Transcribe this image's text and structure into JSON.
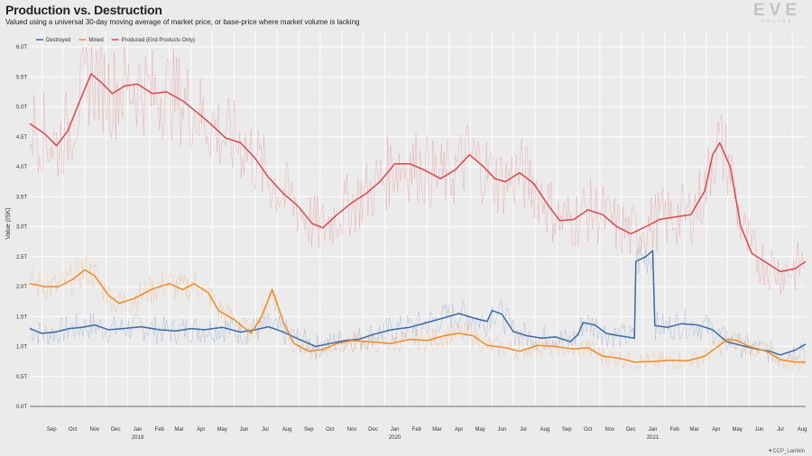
{
  "header": {
    "title": "Production vs. Destruction",
    "subtitle": "Valued using a universal 30-day moving average of market price, or base-price where market volume is lacking"
  },
  "logo": {
    "main": "EVE",
    "sub": "ONLINE"
  },
  "credit": "CCP_Larrikin",
  "colors": {
    "destroyed": "#3b6aa8",
    "mined": "#f08a24",
    "produced": "#e0454a",
    "grid": "#ffffff",
    "background": "#ebebeb"
  },
  "chart_data": {
    "type": "line",
    "ylabel": "Value (ISK)",
    "ylim": [
      0,
      6.0
    ],
    "yticks": [
      "0.0T",
      "0.5T",
      "1.0T",
      "1.5T",
      "2.0T",
      "2.5T",
      "3.0T",
      "3.5T",
      "4.0T",
      "4.5T",
      "5.0T",
      "5.5T",
      "6.0T"
    ],
    "xrange": [
      "2018-08-15",
      "2021-08-20"
    ],
    "x_months": [
      "2018-09",
      "2018-10",
      "2018-11",
      "2018-12",
      "2019-01",
      "2019-02",
      "2019-03",
      "2019-04",
      "2019-05",
      "2019-06",
      "2019-07",
      "2019-08",
      "2019-09",
      "2019-10",
      "2019-11",
      "2019-12",
      "2020-01",
      "2020-02",
      "2020-03",
      "2020-04",
      "2020-05",
      "2020-06",
      "2020-07",
      "2020-08",
      "2020-09",
      "2020-10",
      "2020-11",
      "2020-12",
      "2021-01",
      "2021-02",
      "2021-03",
      "2021-04",
      "2021-05",
      "2021-06",
      "2021-07",
      "2021-08"
    ],
    "xticks": [
      "Sep",
      "Oct",
      "Nov",
      "Dec",
      "Jan",
      "Feb",
      "Mar",
      "Apr",
      "May",
      "Jun",
      "Jul",
      "Aug",
      "Sep",
      "Oct",
      "Nov",
      "Dec",
      "Jan",
      "Feb",
      "Mar",
      "Apr",
      "May",
      "Jun",
      "Jul",
      "Aug",
      "Sep",
      "Oct",
      "Nov",
      "Dec",
      "Jan",
      "Feb",
      "Mar",
      "Apr",
      "May",
      "Jun",
      "Jul",
      "Aug"
    ],
    "year_labels": [
      {
        "month": "2019-01",
        "label": "2019"
      },
      {
        "month": "2020-01",
        "label": "2020"
      },
      {
        "month": "2021-01",
        "label": "2021"
      }
    ],
    "legend_position": "top-left",
    "grid": true,
    "series": [
      {
        "name": "Destroyed",
        "key": "destroyed",
        "points": [
          [
            "2018-08-15",
            1.3
          ],
          [
            "2018-09-01",
            1.22
          ],
          [
            "2018-09-20",
            1.24
          ],
          [
            "2018-10-10",
            1.3
          ],
          [
            "2018-10-28",
            1.32
          ],
          [
            "2018-11-15",
            1.36
          ],
          [
            "2018-12-05",
            1.28
          ],
          [
            "2018-12-25",
            1.3
          ],
          [
            "2019-01-20",
            1.33
          ],
          [
            "2019-02-15",
            1.28
          ],
          [
            "2019-03-10",
            1.26
          ],
          [
            "2019-04-01",
            1.3
          ],
          [
            "2019-04-20",
            1.28
          ],
          [
            "2019-05-15",
            1.32
          ],
          [
            "2019-06-10",
            1.24
          ],
          [
            "2019-07-01",
            1.28
          ],
          [
            "2019-07-20",
            1.33
          ],
          [
            "2019-08-10",
            1.24
          ],
          [
            "2019-09-01",
            1.12
          ],
          [
            "2019-09-25",
            1.0
          ],
          [
            "2019-10-15",
            1.05
          ],
          [
            "2019-11-05",
            1.1
          ],
          [
            "2019-11-25",
            1.12
          ],
          [
            "2019-12-15",
            1.2
          ],
          [
            "2020-01-10",
            1.28
          ],
          [
            "2020-02-05",
            1.32
          ],
          [
            "2020-03-01",
            1.4
          ],
          [
            "2020-03-25",
            1.48
          ],
          [
            "2020-04-15",
            1.55
          ],
          [
            "2020-05-10",
            1.46
          ],
          [
            "2020-05-25",
            1.42
          ],
          [
            "2020-06-01",
            1.6
          ],
          [
            "2020-06-15",
            1.54
          ],
          [
            "2020-07-01",
            1.25
          ],
          [
            "2020-07-20",
            1.18
          ],
          [
            "2020-08-10",
            1.14
          ],
          [
            "2020-08-30",
            1.16
          ],
          [
            "2020-09-20",
            1.08
          ],
          [
            "2020-10-01",
            1.2
          ],
          [
            "2020-10-08",
            1.4
          ],
          [
            "2020-10-25",
            1.36
          ],
          [
            "2020-11-10",
            1.22
          ],
          [
            "2020-11-28",
            1.18
          ],
          [
            "2020-12-20",
            1.14
          ],
          [
            "2020-12-22",
            2.42
          ],
          [
            "2021-01-05",
            2.5
          ],
          [
            "2021-01-15",
            2.6
          ],
          [
            "2021-01-18",
            1.35
          ],
          [
            "2021-02-05",
            1.32
          ],
          [
            "2021-02-25",
            1.38
          ],
          [
            "2021-03-20",
            1.36
          ],
          [
            "2021-04-10",
            1.28
          ],
          [
            "2021-04-30",
            1.08
          ],
          [
            "2021-05-20",
            1.02
          ],
          [
            "2021-06-10",
            0.96
          ],
          [
            "2021-06-30",
            0.92
          ],
          [
            "2021-07-15",
            0.86
          ],
          [
            "2021-08-05",
            0.94
          ],
          [
            "2021-08-20",
            1.04
          ]
        ]
      },
      {
        "name": "Mined",
        "key": "mined",
        "points": [
          [
            "2018-08-15",
            2.05
          ],
          [
            "2018-09-05",
            2.0
          ],
          [
            "2018-09-25",
            2.0
          ],
          [
            "2018-10-15",
            2.12
          ],
          [
            "2018-11-01",
            2.28
          ],
          [
            "2018-11-15",
            2.18
          ],
          [
            "2018-12-05",
            1.85
          ],
          [
            "2018-12-20",
            1.72
          ],
          [
            "2019-01-10",
            1.8
          ],
          [
            "2019-02-05",
            1.96
          ],
          [
            "2019-03-01",
            2.05
          ],
          [
            "2019-03-20",
            1.95
          ],
          [
            "2019-04-05",
            2.05
          ],
          [
            "2019-04-25",
            1.9
          ],
          [
            "2019-05-10",
            1.6
          ],
          [
            "2019-06-01",
            1.45
          ],
          [
            "2019-06-25",
            1.22
          ],
          [
            "2019-07-10",
            1.5
          ],
          [
            "2019-07-25",
            1.95
          ],
          [
            "2019-08-10",
            1.4
          ],
          [
            "2019-08-25",
            1.05
          ],
          [
            "2019-09-15",
            0.92
          ],
          [
            "2019-10-05",
            0.95
          ],
          [
            "2019-10-25",
            1.05
          ],
          [
            "2019-11-15",
            1.1
          ],
          [
            "2019-12-10",
            1.08
          ],
          [
            "2020-01-10",
            1.05
          ],
          [
            "2020-02-05",
            1.12
          ],
          [
            "2020-03-01",
            1.1
          ],
          [
            "2020-03-25",
            1.18
          ],
          [
            "2020-04-15",
            1.22
          ],
          [
            "2020-05-05",
            1.18
          ],
          [
            "2020-05-25",
            1.02
          ],
          [
            "2020-06-20",
            0.98
          ],
          [
            "2020-07-10",
            0.92
          ],
          [
            "2020-08-05",
            1.02
          ],
          [
            "2020-08-30",
            1.0
          ],
          [
            "2020-09-25",
            0.96
          ],
          [
            "2020-10-15",
            0.98
          ],
          [
            "2020-11-05",
            0.84
          ],
          [
            "2020-11-30",
            0.8
          ],
          [
            "2020-12-20",
            0.74
          ],
          [
            "2021-01-15",
            0.75
          ],
          [
            "2021-02-10",
            0.77
          ],
          [
            "2021-03-05",
            0.76
          ],
          [
            "2021-03-30",
            0.84
          ],
          [
            "2021-04-15",
            0.98
          ],
          [
            "2021-05-01",
            1.12
          ],
          [
            "2021-05-15",
            1.1
          ],
          [
            "2021-06-01",
            1.0
          ],
          [
            "2021-06-25",
            0.92
          ],
          [
            "2021-07-15",
            0.78
          ],
          [
            "2021-08-05",
            0.74
          ],
          [
            "2021-08-20",
            0.74
          ]
        ]
      },
      {
        "name": "Produced (End Products Only)",
        "key": "produced",
        "points": [
          [
            "2018-08-15",
            4.72
          ],
          [
            "2018-09-05",
            4.55
          ],
          [
            "2018-09-22",
            4.35
          ],
          [
            "2018-10-08",
            4.6
          ],
          [
            "2018-10-25",
            5.1
          ],
          [
            "2018-11-10",
            5.55
          ],
          [
            "2018-11-25",
            5.4
          ],
          [
            "2018-12-10",
            5.22
          ],
          [
            "2018-12-28",
            5.35
          ],
          [
            "2019-01-15",
            5.38
          ],
          [
            "2019-02-05",
            5.22
          ],
          [
            "2019-02-25",
            5.25
          ],
          [
            "2019-03-20",
            5.1
          ],
          [
            "2019-04-10",
            4.9
          ],
          [
            "2019-04-30",
            4.7
          ],
          [
            "2019-05-20",
            4.48
          ],
          [
            "2019-06-10",
            4.4
          ],
          [
            "2019-06-30",
            4.15
          ],
          [
            "2019-07-20",
            3.82
          ],
          [
            "2019-08-10",
            3.55
          ],
          [
            "2019-08-30",
            3.35
          ],
          [
            "2019-09-20",
            3.05
          ],
          [
            "2019-10-05",
            2.98
          ],
          [
            "2019-10-25",
            3.2
          ],
          [
            "2019-11-15",
            3.4
          ],
          [
            "2019-12-05",
            3.55
          ],
          [
            "2019-12-25",
            3.75
          ],
          [
            "2020-01-15",
            4.05
          ],
          [
            "2020-02-05",
            4.05
          ],
          [
            "2020-02-25",
            3.95
          ],
          [
            "2020-03-20",
            3.8
          ],
          [
            "2020-04-10",
            3.95
          ],
          [
            "2020-04-30",
            4.2
          ],
          [
            "2020-05-20",
            4.0
          ],
          [
            "2020-06-05",
            3.8
          ],
          [
            "2020-06-20",
            3.75
          ],
          [
            "2020-07-10",
            3.9
          ],
          [
            "2020-07-30",
            3.72
          ],
          [
            "2020-08-20",
            3.35
          ],
          [
            "2020-09-05",
            3.1
          ],
          [
            "2020-09-25",
            3.12
          ],
          [
            "2020-10-15",
            3.28
          ],
          [
            "2020-11-05",
            3.2
          ],
          [
            "2020-11-25",
            3.0
          ],
          [
            "2020-12-15",
            2.88
          ],
          [
            "2021-01-05",
            3.0
          ],
          [
            "2021-01-25",
            3.12
          ],
          [
            "2021-02-15",
            3.16
          ],
          [
            "2021-03-10",
            3.2
          ],
          [
            "2021-03-30",
            3.6
          ],
          [
            "2021-04-10",
            4.2
          ],
          [
            "2021-04-20",
            4.4
          ],
          [
            "2021-05-05",
            4.0
          ],
          [
            "2021-05-20",
            3.0
          ],
          [
            "2021-06-05",
            2.55
          ],
          [
            "2021-06-25",
            2.4
          ],
          [
            "2021-07-15",
            2.25
          ],
          [
            "2021-08-05",
            2.3
          ],
          [
            "2021-08-20",
            2.42
          ]
        ]
      }
    ]
  }
}
